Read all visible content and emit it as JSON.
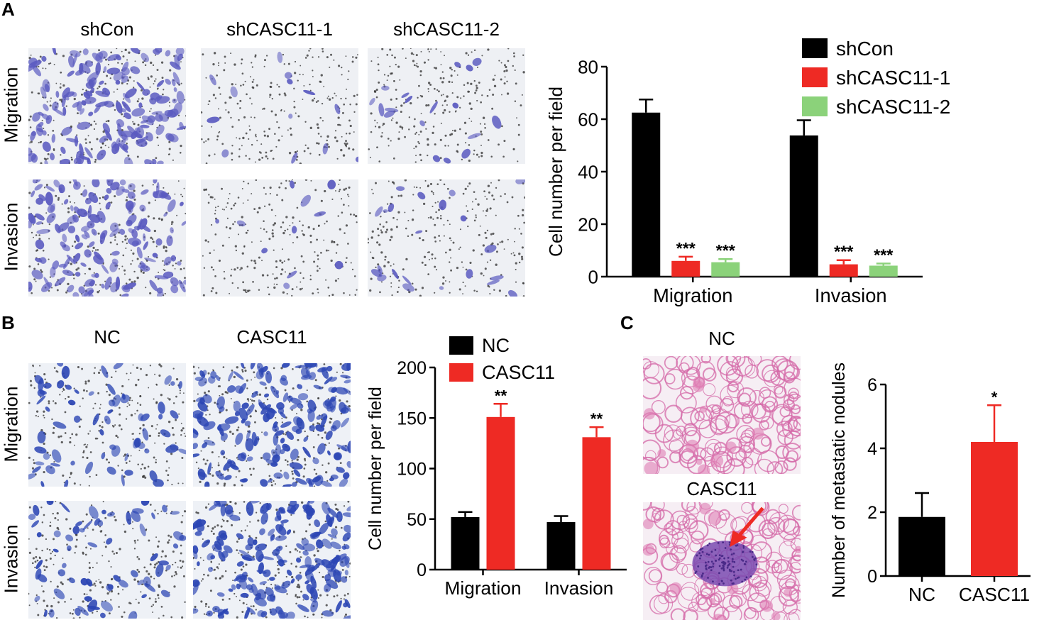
{
  "colors": {
    "black": "#000000",
    "red": "#ee2a24",
    "green": "#8bd27a",
    "stain_violet": "#5b5bc0",
    "stain_blue": "#2c46b4",
    "he_pink": "#d46aa8",
    "he_purple": "#7a4ab0"
  },
  "panel_a": {
    "letter": "A",
    "col_labels": [
      "shCon",
      "shCASC11-1",
      "shCASC11-2"
    ],
    "row_labels": [
      "Migration",
      "Invasion"
    ],
    "images": [
      {
        "name": "shcon-migration-image",
        "density": 0.75,
        "stain": "violet"
      },
      {
        "name": "shcasc11-1-migration-image",
        "density": 0.06,
        "stain": "violet"
      },
      {
        "name": "shcasc11-2-migration-image",
        "density": 0.08,
        "stain": "violet"
      },
      {
        "name": "shcon-invasion-image",
        "density": 0.7,
        "stain": "violet"
      },
      {
        "name": "shcasc11-1-invasion-image",
        "density": 0.05,
        "stain": "violet"
      },
      {
        "name": "shcasc11-2-invasion-image",
        "density": 0.1,
        "stain": "violet"
      }
    ]
  },
  "panel_b": {
    "letter": "B",
    "col_labels": [
      "NC",
      "CASC11"
    ],
    "row_labels": [
      "Migration",
      "Invasion"
    ],
    "images": [
      {
        "name": "nc-migration-image",
        "density": 0.3,
        "stain": "blue"
      },
      {
        "name": "casc11-migration-image",
        "density": 0.85,
        "stain": "blue"
      },
      {
        "name": "nc-invasion-image",
        "density": 0.3,
        "stain": "blue"
      },
      {
        "name": "casc11-invasion-image",
        "density": 0.85,
        "stain": "blue"
      }
    ]
  },
  "panel_c": {
    "letter": "C",
    "image_labels": [
      "NC",
      "CASC11"
    ],
    "images": [
      {
        "name": "nc-lung-histology-image"
      },
      {
        "name": "casc11-lung-histology-image"
      }
    ]
  },
  "chart_data": [
    {
      "id": "chart-a",
      "type": "bar",
      "categories": [
        "Migration",
        "Invasion"
      ],
      "series": [
        {
          "name": "shCon",
          "color": "#000000",
          "values": [
            62.5,
            53.8
          ],
          "errors": [
            5.0,
            5.8
          ],
          "labels": [
            "",
            ""
          ]
        },
        {
          "name": "shCASC11-1",
          "color": "#ee2a24",
          "values": [
            6.0,
            4.7
          ],
          "errors": [
            1.6,
            1.6
          ],
          "labels": [
            "***",
            "***"
          ]
        },
        {
          "name": "shCASC11-2",
          "color": "#8bd27a",
          "values": [
            5.5,
            4.2
          ],
          "errors": [
            1.2,
            0.8
          ],
          "labels": [
            "***",
            "***"
          ]
        }
      ],
      "ylabel": "Cell number per field",
      "xlabel": "",
      "ylim": [
        0,
        80
      ],
      "yticks": [
        "0",
        "20",
        "40",
        "60",
        "80"
      ],
      "legend": "top-right"
    },
    {
      "id": "chart-b",
      "type": "bar",
      "categories": [
        "Migration",
        "Invasion"
      ],
      "series": [
        {
          "name": "NC",
          "color": "#000000",
          "values": [
            52,
            47
          ],
          "errors": [
            5,
            6
          ],
          "labels": [
            "",
            ""
          ]
        },
        {
          "name": "CASC11",
          "color": "#ee2a24",
          "values": [
            151,
            131
          ],
          "errors": [
            13,
            10
          ],
          "labels": [
            "**",
            "**"
          ]
        }
      ],
      "ylabel": "Cell number per field",
      "xlabel": "",
      "ylim": [
        0,
        200
      ],
      "yticks": [
        "0",
        "50",
        "100",
        "150",
        "200"
      ],
      "legend": "top-left"
    },
    {
      "id": "chart-c",
      "type": "bar",
      "categories": [
        "NC",
        "CASC11"
      ],
      "series": [
        {
          "name": "",
          "colors": [
            "#000000",
            "#ee2a24"
          ],
          "values": [
            1.85,
            4.2
          ],
          "errors": [
            0.75,
            1.15
          ],
          "labels": [
            "",
            "*"
          ]
        }
      ],
      "ylabel": "Number of metastatic nodules",
      "xlabel": "",
      "ylim": [
        0,
        6
      ],
      "yticks": [
        "0",
        "2",
        "4",
        "6"
      ],
      "legend": "none"
    }
  ]
}
